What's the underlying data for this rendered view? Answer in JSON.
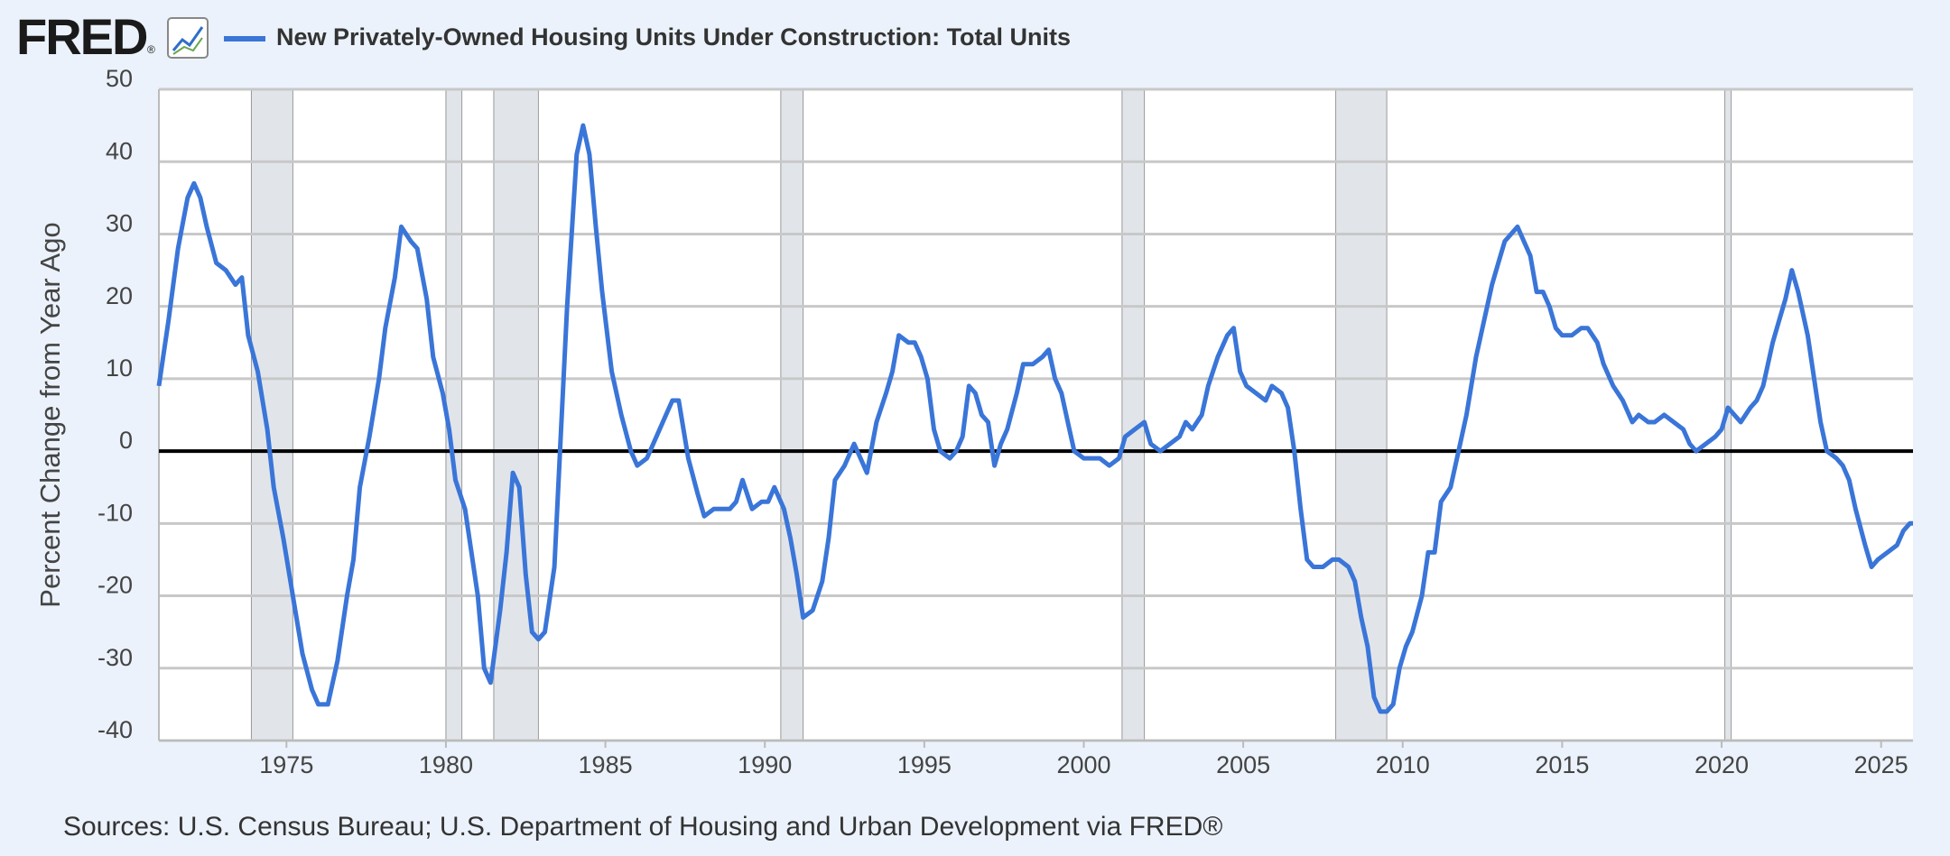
{
  "chart_data": {
    "type": "line",
    "logo": "FRED",
    "logo_mark": "®",
    "ylabel": "Percent Change from Year Ago",
    "source": "Sources: U.S. Census Bureau; U.S. Department of Housing and Urban Development via FRED®",
    "xlim": [
      1971,
      2026
    ],
    "xticks": [
      1975,
      1980,
      1985,
      1990,
      1995,
      2000,
      2005,
      2010,
      2015,
      2020,
      2025
    ],
    "ylim": [
      -40,
      50
    ],
    "yticks": [
      -40,
      -30,
      -20,
      -10,
      0,
      10,
      20,
      30,
      40,
      50
    ],
    "grid": true,
    "recessions": [
      [
        1973.9,
        1975.2
      ],
      [
        1980.0,
        1980.5
      ],
      [
        1981.5,
        1982.9
      ],
      [
        1990.5,
        1991.2
      ],
      [
        2001.2,
        2001.9
      ],
      [
        2007.9,
        2009.5
      ],
      [
        2020.1,
        2020.3
      ]
    ],
    "x": [
      1971.0,
      1971.3,
      1971.6,
      1971.9,
      1972.1,
      1972.3,
      1972.5,
      1972.8,
      1973.1,
      1973.4,
      1973.6,
      1973.8,
      1974.1,
      1974.4,
      1974.6,
      1974.9,
      1975.2,
      1975.5,
      1975.8,
      1976.0,
      1976.3,
      1976.6,
      1976.9,
      1977.1,
      1977.3,
      1977.6,
      1977.9,
      1978.1,
      1978.4,
      1978.6,
      1978.9,
      1979.1,
      1979.4,
      1979.6,
      1979.9,
      1980.1,
      1980.3,
      1980.6,
      1980.8,
      1981.0,
      1981.2,
      1981.4,
      1981.7,
      1981.9,
      1982.1,
      1982.3,
      1982.5,
      1982.7,
      1982.9,
      1983.1,
      1983.4,
      1983.6,
      1983.8,
      1984.1,
      1984.3,
      1984.5,
      1984.7,
      1984.9,
      1985.2,
      1985.5,
      1985.8,
      1986.0,
      1986.3,
      1986.6,
      1986.9,
      1987.1,
      1987.3,
      1987.6,
      1987.9,
      1988.1,
      1988.4,
      1988.6,
      1988.9,
      1989.1,
      1989.3,
      1989.6,
      1989.9,
      1990.1,
      1990.3,
      1990.6,
      1990.8,
      1991.0,
      1991.2,
      1991.5,
      1991.8,
      1992.0,
      1992.2,
      1992.5,
      1992.8,
      1993.0,
      1993.2,
      1993.5,
      1993.8,
      1994.0,
      1994.2,
      1994.5,
      1994.7,
      1994.9,
      1995.1,
      1995.3,
      1995.5,
      1995.8,
      1996.0,
      1996.2,
      1996.4,
      1996.6,
      1996.8,
      1997.0,
      1997.2,
      1997.4,
      1997.6,
      1997.9,
      1998.1,
      1998.4,
      1998.7,
      1998.9,
      1999.1,
      1999.3,
      1999.5,
      1999.7,
      2000.0,
      2000.2,
      2000.5,
      2000.8,
      2001.1,
      2001.3,
      2001.6,
      2001.9,
      2002.1,
      2002.4,
      2002.7,
      2003.0,
      2003.2,
      2003.4,
      2003.7,
      2003.9,
      2004.2,
      2004.5,
      2004.7,
      2004.9,
      2005.1,
      2005.4,
      2005.7,
      2005.9,
      2006.2,
      2006.4,
      2006.6,
      2006.8,
      2007.0,
      2007.2,
      2007.5,
      2007.8,
      2008.0,
      2008.3,
      2008.5,
      2008.7,
      2008.9,
      2009.1,
      2009.3,
      2009.5,
      2009.7,
      2009.9,
      2010.1,
      2010.3,
      2010.6,
      2010.8,
      2011.0,
      2011.2,
      2011.5,
      2011.8,
      2012.0,
      2012.3,
      2012.6,
      2012.8,
      2013.0,
      2013.2,
      2013.4,
      2013.6,
      2013.8,
      2014.0,
      2014.2,
      2014.4,
      2014.6,
      2014.8,
      2015.0,
      2015.3,
      2015.6,
      2015.8,
      2016.1,
      2016.3,
      2016.6,
      2016.9,
      2017.2,
      2017.4,
      2017.7,
      2017.9,
      2018.2,
      2018.5,
      2018.8,
      2019.0,
      2019.2,
      2019.5,
      2019.8,
      2020.0,
      2020.2,
      2020.4,
      2020.6,
      2020.9,
      2021.1,
      2021.3,
      2021.6,
      2021.8,
      2022.0,
      2022.2,
      2022.4,
      2022.7,
      2022.9,
      2023.1,
      2023.3,
      2023.6,
      2023.8,
      2024.0,
      2024.2,
      2024.5,
      2024.7,
      2024.9,
      2025.2,
      2025.5,
      2025.7,
      2025.9,
      2026.0
    ],
    "series": [
      {
        "name": "New Privately-Owned Housing Units Under Construction: Total Units",
        "color": "#3a75d8",
        "values": [
          9,
          18,
          28,
          35,
          37,
          35,
          31,
          26,
          25,
          23,
          24,
          16,
          11,
          3,
          -5,
          -12,
          -20,
          -28,
          -33,
          -35,
          -35,
          -29,
          -20,
          -15,
          -5,
          2,
          10,
          17,
          24,
          31,
          29,
          28,
          21,
          13,
          8,
          3,
          -4,
          -8,
          -14,
          -20,
          -30,
          -32,
          -22,
          -14,
          -3,
          -5,
          -17,
          -25,
          -26,
          -25,
          -16,
          2,
          20,
          41,
          45,
          41,
          31,
          22,
          11,
          5,
          0,
          -2,
          -1,
          2,
          5,
          7,
          7,
          -1,
          -6,
          -9,
          -8,
          -8,
          -8,
          -7,
          -4,
          -8,
          -7,
          -7,
          -5,
          -8,
          -12,
          -17,
          -23,
          -22,
          -18,
          -12,
          -4,
          -2,
          1,
          -1,
          -3,
          4,
          8,
          11,
          16,
          15,
          15,
          13,
          10,
          3,
          0,
          -1,
          0,
          2,
          9,
          8,
          5,
          4,
          -2,
          1,
          3,
          8,
          12,
          12,
          13,
          14,
          10,
          8,
          4,
          0,
          -1,
          -1,
          -1,
          -2,
          -1,
          2,
          3,
          4,
          1,
          0,
          1,
          2,
          4,
          3,
          5,
          9,
          13,
          16,
          17,
          11,
          9,
          8,
          7,
          9,
          8,
          6,
          0,
          -8,
          -15,
          -16,
          -16,
          -15,
          -15,
          -16,
          -18,
          -23,
          -27,
          -34,
          -36,
          -36,
          -35,
          -30,
          -27,
          -25,
          -20,
          -14,
          -14,
          -7,
          -5,
          1,
          5,
          13,
          19,
          23,
          26,
          29,
          30,
          31,
          29,
          27,
          22,
          22,
          20,
          17,
          16,
          16,
          17,
          17,
          15,
          12,
          9,
          7,
          4,
          5,
          4,
          4,
          5,
          4,
          3,
          1,
          0,
          1,
          2,
          3,
          6,
          5,
          4,
          6,
          7,
          9,
          15,
          18,
          21,
          25,
          22,
          16,
          10,
          4,
          0,
          -1,
          -2,
          -4,
          -8,
          -13,
          -16,
          -15,
          -14,
          -13,
          -11,
          -10,
          -10
        ]
      }
    ]
  }
}
